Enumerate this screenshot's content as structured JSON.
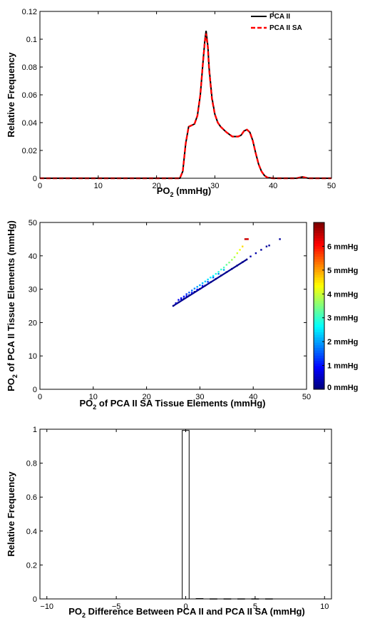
{
  "chart_data": [
    {
      "type": "line",
      "xlabel": {
        "main": "PO",
        "sub": "2",
        "rest": " (mmHg)"
      },
      "ylabel": "Relative Frequency",
      "xlim": [
        0,
        50
      ],
      "ylim": [
        0,
        0.12
      ],
      "xticks": [
        0,
        10,
        20,
        30,
        40,
        50
      ],
      "yticks": [
        0,
        0.02,
        0.04,
        0.06,
        0.08,
        0.1,
        0.12
      ],
      "ytick_labels": [
        "0",
        "0.02",
        "0.04",
        "0.06",
        "0.08",
        "0.1",
        "0.12"
      ],
      "grid": false,
      "legend_position": "top-right",
      "series": [
        {
          "name": "PCA II",
          "color": "#000000",
          "style": "solid",
          "x": [
            0,
            24,
            24.5,
            25,
            25.5,
            26,
            26.5,
            27,
            27.5,
            28,
            28.3,
            28.5,
            28.8,
            29,
            29.5,
            30,
            30.5,
            31,
            31.5,
            32,
            33,
            34,
            34.5,
            35,
            35.5,
            36,
            36.5,
            37,
            37.5,
            38,
            38.5,
            39,
            40,
            44,
            45,
            46,
            50
          ],
          "y": [
            0,
            0,
            0.005,
            0.025,
            0.037,
            0.038,
            0.039,
            0.045,
            0.06,
            0.085,
            0.1,
            0.106,
            0.095,
            0.08,
            0.058,
            0.046,
            0.04,
            0.037,
            0.035,
            0.033,
            0.03,
            0.03,
            0.031,
            0.034,
            0.035,
            0.033,
            0.027,
            0.018,
            0.01,
            0.005,
            0.002,
            0.0005,
            0,
            0,
            0.001,
            0,
            0
          ]
        },
        {
          "name": "PCA II SA",
          "color": "#ff0000",
          "style": "dashed",
          "x": [
            0,
            24,
            24.5,
            25,
            25.5,
            26,
            26.5,
            27,
            27.5,
            28,
            28.3,
            28.5,
            28.8,
            29,
            29.5,
            30,
            30.5,
            31,
            31.5,
            32,
            33,
            34,
            34.5,
            35,
            35.5,
            36,
            36.5,
            37,
            37.5,
            38,
            38.5,
            39,
            40,
            44,
            45,
            46,
            50
          ],
          "y": [
            0,
            0,
            0.005,
            0.025,
            0.037,
            0.038,
            0.039,
            0.045,
            0.06,
            0.085,
            0.099,
            0.104,
            0.094,
            0.079,
            0.057,
            0.046,
            0.04,
            0.037,
            0.035,
            0.033,
            0.03,
            0.03,
            0.031,
            0.034,
            0.035,
            0.033,
            0.027,
            0.018,
            0.01,
            0.005,
            0.002,
            0.0005,
            0,
            0,
            0.001,
            0,
            0
          ]
        }
      ]
    },
    {
      "type": "scatter",
      "xlabel": {
        "main": "PO",
        "sub": "2",
        "rest": " of PCA II SA Tissue Elements (mmHg)"
      },
      "ylabel": {
        "main": "PO",
        "sub": "2",
        "rest": " of PCA II Tissue Elements (mmHg)"
      },
      "xlim": [
        0,
        50
      ],
      "ylim": [
        0,
        50
      ],
      "xticks": [
        0,
        10,
        20,
        30,
        40,
        50
      ],
      "yticks": [
        0,
        10,
        20,
        30,
        40,
        50
      ],
      "grid": false,
      "color_scale": "jet",
      "color_range": [
        0,
        7
      ],
      "colorbar": {
        "ticks": [
          0,
          1,
          2,
          3,
          4,
          5,
          6
        ],
        "labels": [
          "0 mmHg",
          "1 mmHg",
          "2 mmHg",
          "3 mmHg",
          "4 mmHg",
          "5 mmHg",
          "6 mmHg"
        ]
      },
      "points": [
        {
          "x": 25,
          "y": 25,
          "c": 0.1
        },
        {
          "x": 26,
          "y": 26.1,
          "c": 0.1
        },
        {
          "x": 27,
          "y": 27.2,
          "c": 0.1
        },
        {
          "x": 28,
          "y": 28.2,
          "c": 0.1
        },
        {
          "x": 29,
          "y": 29.2,
          "c": 0.1
        },
        {
          "x": 30,
          "y": 30.1,
          "c": 0.1
        },
        {
          "x": 31,
          "y": 31.1,
          "c": 0.1
        },
        {
          "x": 32,
          "y": 32.1,
          "c": 0.1
        },
        {
          "x": 33,
          "y": 33.1,
          "c": 0.1
        },
        {
          "x": 34,
          "y": 34.1,
          "c": 0.1
        },
        {
          "x": 35,
          "y": 35.1,
          "c": 0.1
        },
        {
          "x": 36,
          "y": 36.1,
          "c": 0.1
        },
        {
          "x": 37,
          "y": 37.1,
          "c": 0.1
        },
        {
          "x": 38,
          "y": 38.1,
          "c": 0.1
        },
        {
          "x": 38.8,
          "y": 38.9,
          "c": 0.1
        },
        {
          "x": 25.5,
          "y": 25.8,
          "c": 0.5
        },
        {
          "x": 26,
          "y": 26.8,
          "c": 0.8
        },
        {
          "x": 26.5,
          "y": 27.3,
          "c": 1.0
        },
        {
          "x": 27,
          "y": 27.8,
          "c": 1.0
        },
        {
          "x": 27.5,
          "y": 28.5,
          "c": 1.2
        },
        {
          "x": 28,
          "y": 29,
          "c": 1.5
        },
        {
          "x": 28.5,
          "y": 29.6,
          "c": 1.6
        },
        {
          "x": 29,
          "y": 30.2,
          "c": 1.8
        },
        {
          "x": 29.5,
          "y": 30.7,
          "c": 2.0
        },
        {
          "x": 30,
          "y": 31.2,
          "c": 2.0
        },
        {
          "x": 30.5,
          "y": 31.8,
          "c": 2.2
        },
        {
          "x": 31,
          "y": 32.3,
          "c": 2.3
        },
        {
          "x": 31.5,
          "y": 32.9,
          "c": 2.4
        },
        {
          "x": 32,
          "y": 33.5,
          "c": 2.5
        },
        {
          "x": 32.5,
          "y": 34,
          "c": 2.6
        },
        {
          "x": 33,
          "y": 34.6,
          "c": 2.8
        },
        {
          "x": 33.5,
          "y": 35.2,
          "c": 2.9
        },
        {
          "x": 34,
          "y": 35.9,
          "c": 3.0
        },
        {
          "x": 34.5,
          "y": 36.5,
          "c": 3.1
        },
        {
          "x": 35,
          "y": 37.3,
          "c": 3.3
        },
        {
          "x": 35.5,
          "y": 38,
          "c": 3.5
        },
        {
          "x": 36,
          "y": 38.8,
          "c": 3.7
        },
        {
          "x": 36.5,
          "y": 39.6,
          "c": 3.8
        },
        {
          "x": 37,
          "y": 40.8,
          "c": 4.1
        },
        {
          "x": 37.5,
          "y": 41.8,
          "c": 4.3
        },
        {
          "x": 38,
          "y": 42.8,
          "c": 4.6
        },
        {
          "x": 38.5,
          "y": 45,
          "c": 6.5
        },
        {
          "x": 39,
          "y": 45,
          "c": 6.3
        },
        {
          "x": 38.8,
          "y": 45,
          "c": 6.5
        },
        {
          "x": 39.5,
          "y": 39.8,
          "c": 0.3
        },
        {
          "x": 40.5,
          "y": 40.8,
          "c": 0.3
        },
        {
          "x": 41.5,
          "y": 41.8,
          "c": 0.2
        },
        {
          "x": 42.5,
          "y": 42.8,
          "c": 0.2
        },
        {
          "x": 43,
          "y": 43.1,
          "c": 0.2
        },
        {
          "x": 45,
          "y": 45,
          "c": 0.2
        },
        {
          "x": 26.5,
          "y": 26.9,
          "c": 0.5
        },
        {
          "x": 27.5,
          "y": 27.9,
          "c": 0.6
        },
        {
          "x": 28.5,
          "y": 28.9,
          "c": 0.7
        },
        {
          "x": 29.5,
          "y": 29.9,
          "c": 0.8
        },
        {
          "x": 30.5,
          "y": 31,
          "c": 1.0
        },
        {
          "x": 31.5,
          "y": 32.2,
          "c": 1.3
        },
        {
          "x": 32.5,
          "y": 33.5,
          "c": 1.6
        },
        {
          "x": 33.5,
          "y": 34.6,
          "c": 1.8
        },
        {
          "x": 34.5,
          "y": 35.8,
          "c": 2.0
        }
      ]
    },
    {
      "type": "bar",
      "xlabel": {
        "main": "PO",
        "sub": "2",
        "rest": " Difference Between PCA II and PCA II SA (mmHg)"
      },
      "ylabel": "Relative Frequency",
      "xlim": [
        -10.5,
        10.5
      ],
      "ylim": [
        0,
        1
      ],
      "xticks": [
        -10,
        -5,
        0,
        5,
        10
      ],
      "xtick_labels": [
        "−10",
        "−5",
        "0",
        "5",
        "10"
      ],
      "yticks": [
        0,
        0.2,
        0.4,
        0.6,
        0.8,
        1
      ],
      "ytick_labels": [
        "0",
        "0.2",
        "0.4",
        "0.6",
        "0.8",
        "1"
      ],
      "grid": false,
      "bar_width": 0.5,
      "bars": [
        {
          "x": 0,
          "value": 0.993
        },
        {
          "x": 1,
          "value": 0.002
        },
        {
          "x": 2,
          "value": 0.001
        },
        {
          "x": 3,
          "value": 0.001
        },
        {
          "x": 4,
          "value": 0.001
        },
        {
          "x": 5,
          "value": 0.001
        },
        {
          "x": 6,
          "value": 0.001
        }
      ]
    }
  ]
}
